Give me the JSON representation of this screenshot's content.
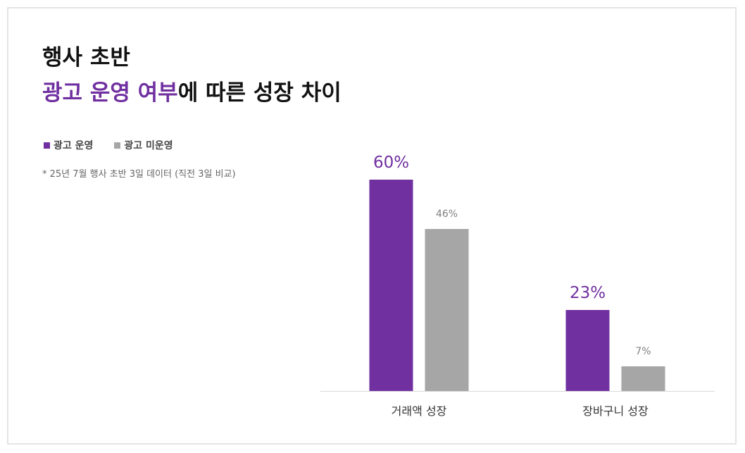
{
  "title": {
    "line1": "행사 초반",
    "line2_accent": "광고 운영 여부",
    "line2_rest": "에 따른 성장 차이"
  },
  "footnote": "* 25년 7월 행사 초반 3일 데이터 (직전 3일 비교)",
  "colors": {
    "ad": "#7030a0",
    "no_ad": "#a6a6a6",
    "axis": "#d9d9d9"
  },
  "chart_data": {
    "type": "bar",
    "categories": [
      "거래액 성장",
      "장바구니 성장"
    ],
    "series": [
      {
        "name": "광고 운영",
        "values": [
          60,
          23
        ],
        "labels": [
          "60%",
          "23%"
        ]
      },
      {
        "name": "광고 미운영",
        "values": [
          46,
          7
        ],
        "labels": [
          "46%",
          "7%"
        ]
      }
    ],
    "ylim": [
      0,
      60
    ],
    "grid": false,
    "legend": "top-left"
  }
}
